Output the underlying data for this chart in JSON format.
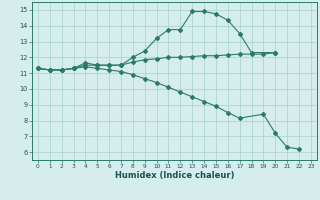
{
  "line1_x": [
    0,
    1,
    2,
    3,
    4,
    5,
    6,
    7,
    8,
    9,
    10,
    11,
    12,
    13,
    14,
    15,
    16,
    17,
    18,
    20
  ],
  "line1_y": [
    11.3,
    11.2,
    11.2,
    11.3,
    11.65,
    11.5,
    11.5,
    11.5,
    12.0,
    12.4,
    13.2,
    13.75,
    13.75,
    14.9,
    14.9,
    14.75,
    14.35,
    13.5,
    12.3,
    12.3
  ],
  "line2_x": [
    0,
    1,
    2,
    3,
    4,
    5,
    6,
    7,
    8,
    9,
    10,
    11,
    12,
    13,
    14,
    15,
    16,
    17,
    18,
    19,
    20
  ],
  "line2_y": [
    11.3,
    11.2,
    11.2,
    11.3,
    11.5,
    11.5,
    11.5,
    11.5,
    11.7,
    11.85,
    11.9,
    12.0,
    12.0,
    12.05,
    12.1,
    12.1,
    12.15,
    12.2,
    12.2,
    12.2,
    12.3
  ],
  "line3_x": [
    0,
    1,
    2,
    3,
    4,
    5,
    6,
    7,
    8,
    9,
    10,
    11,
    12,
    13,
    14,
    15,
    16,
    17,
    19,
    20,
    21,
    22
  ],
  "line3_y": [
    11.3,
    11.2,
    11.2,
    11.3,
    11.4,
    11.3,
    11.2,
    11.1,
    10.9,
    10.65,
    10.4,
    10.1,
    9.8,
    9.5,
    9.2,
    8.9,
    8.5,
    8.15,
    8.4,
    7.2,
    6.3,
    6.2
  ],
  "color": "#2a7a6a",
  "bg_color": "#d5eeed",
  "grid_color": "#aed4d0",
  "xlabel": "Humidex (Indice chaleur)",
  "xlim": [
    -0.5,
    23.5
  ],
  "ylim": [
    5.5,
    15.5
  ],
  "xticks": [
    0,
    1,
    2,
    3,
    4,
    5,
    6,
    7,
    8,
    9,
    10,
    11,
    12,
    13,
    14,
    15,
    16,
    17,
    18,
    19,
    20,
    21,
    22,
    23
  ],
  "yticks": [
    6,
    7,
    8,
    9,
    10,
    11,
    12,
    13,
    14,
    15
  ]
}
